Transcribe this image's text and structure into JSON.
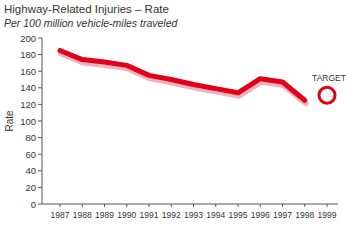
{
  "chart_data": {
    "type": "line",
    "title": "Highway-Related Injuries – Rate",
    "subtitle": "Per 100 million vehicle-miles traveled",
    "y_label": "Rate",
    "categories": [
      "1987",
      "1988",
      "1989",
      "1990",
      "1991",
      "1992",
      "1993",
      "1994",
      "1995",
      "1996",
      "1997",
      "1998",
      "1999"
    ],
    "series": [
      {
        "color": "#e3001b",
        "values": [
          185,
          174,
          171,
          167,
          155,
          150,
          144,
          139,
          134,
          151,
          147,
          125,
          null
        ]
      },
      {
        "name": "TARGET",
        "type": "scatter",
        "marker": "circle",
        "color": "#e3001b",
        "values": [
          null,
          null,
          null,
          null,
          null,
          null,
          null,
          null,
          null,
          null,
          null,
          null,
          131
        ]
      }
    ],
    "ylim": [
      0,
      200
    ],
    "yticks": [
      0,
      20,
      40,
      60,
      80,
      100,
      120,
      140,
      160,
      180,
      200
    ],
    "grid": false
  }
}
